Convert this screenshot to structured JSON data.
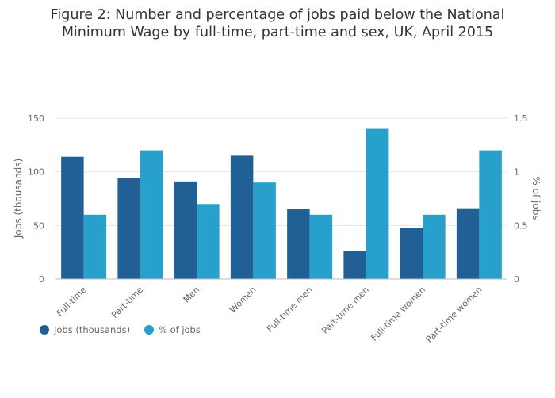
{
  "chart_data": {
    "type": "bar",
    "title_lines": [
      "Figure 2: Number and percentage of jobs paid below the National",
      "Minimum Wage by full-time, part-time and sex, UK, April 2015"
    ],
    "categories": [
      "Full-time",
      "Part-time",
      "Men",
      "Women",
      "Full-time men",
      "Part-time men",
      "Full-time women",
      "Part-time women"
    ],
    "series": [
      {
        "name": "Jobs (thousands)",
        "axis": "left",
        "color": "#206095",
        "values": [
          114,
          94,
          91,
          115,
          65,
          26,
          48,
          66
        ]
      },
      {
        "name": "% of jobs",
        "axis": "right",
        "color": "#27a0cc",
        "values": [
          0.6,
          1.2,
          0.7,
          0.9,
          0.6,
          1.4,
          0.6,
          1.2
        ]
      }
    ],
    "ylabel": "Jobs (thousands)",
    "y2label": "% of jobs",
    "ylim": [
      0,
      150
    ],
    "y2lim": [
      0,
      1.5
    ],
    "yticks": [
      0,
      50,
      100,
      150
    ],
    "y2ticks": [
      0,
      0.5,
      1,
      1.5
    ],
    "y2tick_labels": [
      "0",
      "0.5",
      "1",
      "1.5"
    ],
    "grid": true,
    "legend_position": "bottom-left"
  }
}
